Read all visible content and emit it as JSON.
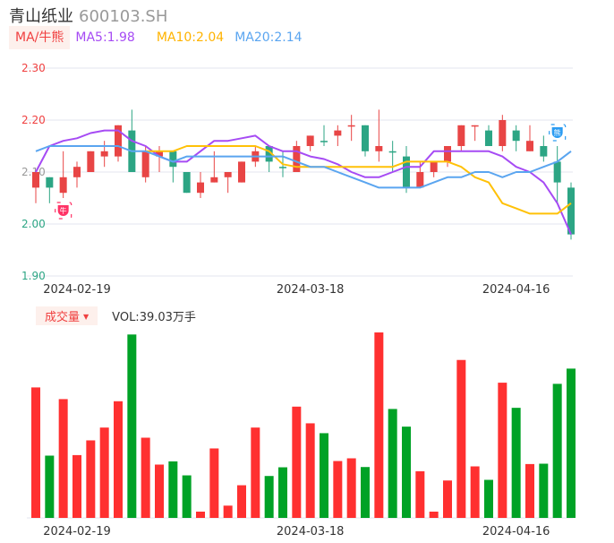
{
  "header": {
    "name": "青山纸业",
    "code": "600103.SH"
  },
  "legend": {
    "ma_button": "MA/牛熊",
    "ma5": "MA5:1.98",
    "ma10": "MA10:2.04",
    "ma20": "MA20:2.14"
  },
  "volume_header": {
    "button": "成交量",
    "value": "VOL:39.03万手"
  },
  "markers": {
    "bull": "牛",
    "bear": "熊"
  },
  "colors": {
    "up": "#e84545",
    "down": "#2ca584",
    "vol_up": "#ff3030",
    "vol_down": "#00a226",
    "ma5": "#a64bf4",
    "ma10": "#ffc107",
    "ma20": "#5aa5f0",
    "grid": "#e3e6ef"
  },
  "chart_data": {
    "type": "candlestick",
    "y_ticks": [
      "2.30",
      "2.20",
      "2.10",
      "2.00",
      "1.90"
    ],
    "ylim": [
      1.9,
      2.3
    ],
    "x_ticks": [
      {
        "index": 3,
        "label": "2024-02-19"
      },
      {
        "index": 20,
        "label": "2024-03-18"
      },
      {
        "index": 35,
        "label": "2024-04-16"
      }
    ],
    "ohlc": [
      [
        2.07,
        2.1,
        2.04,
        2.1
      ],
      [
        2.09,
        2.09,
        2.04,
        2.07
      ],
      [
        2.06,
        2.14,
        2.05,
        2.09
      ],
      [
        2.09,
        2.12,
        2.07,
        2.11
      ],
      [
        2.1,
        2.14,
        2.1,
        2.14
      ],
      [
        2.13,
        2.16,
        2.11,
        2.14
      ],
      [
        2.13,
        2.19,
        2.12,
        2.19
      ],
      [
        2.18,
        2.22,
        2.1,
        2.1
      ],
      [
        2.09,
        2.15,
        2.08,
        2.14
      ],
      [
        2.13,
        2.15,
        2.1,
        2.14
      ],
      [
        2.14,
        2.14,
        2.08,
        2.11
      ],
      [
        2.1,
        2.1,
        2.06,
        2.06
      ],
      [
        2.06,
        2.1,
        2.05,
        2.08
      ],
      [
        2.08,
        2.14,
        2.08,
        2.09
      ],
      [
        2.09,
        2.1,
        2.06,
        2.1
      ],
      [
        2.08,
        2.12,
        2.08,
        2.12
      ],
      [
        2.12,
        2.15,
        2.11,
        2.14
      ],
      [
        2.15,
        2.15,
        2.1,
        2.12
      ],
      [
        2.11,
        2.14,
        2.09,
        2.11
      ],
      [
        2.1,
        2.16,
        2.1,
        2.15
      ],
      [
        2.15,
        2.17,
        2.14,
        2.17
      ],
      [
        2.16,
        2.19,
        2.15,
        2.16
      ],
      [
        2.17,
        2.19,
        2.15,
        2.18
      ],
      [
        2.19,
        2.21,
        2.16,
        2.19
      ],
      [
        2.19,
        2.19,
        2.13,
        2.14
      ],
      [
        2.14,
        2.22,
        2.12,
        2.15
      ],
      [
        2.14,
        2.16,
        2.1,
        2.14
      ],
      [
        2.13,
        2.15,
        2.06,
        2.07
      ],
      [
        2.07,
        2.12,
        2.07,
        2.1
      ],
      [
        2.1,
        2.12,
        2.09,
        2.12
      ],
      [
        2.12,
        2.15,
        2.11,
        2.15
      ],
      [
        2.15,
        2.19,
        2.14,
        2.19
      ],
      [
        2.19,
        2.19,
        2.16,
        2.19
      ],
      [
        2.18,
        2.19,
        2.15,
        2.15
      ],
      [
        2.15,
        2.21,
        2.14,
        2.2
      ],
      [
        2.18,
        2.19,
        2.14,
        2.16
      ],
      [
        2.14,
        2.19,
        2.14,
        2.16
      ],
      [
        2.15,
        2.17,
        2.12,
        2.13
      ],
      [
        2.12,
        2.15,
        2.04,
        2.08
      ],
      [
        2.07,
        2.08,
        1.97,
        1.98
      ]
    ],
    "ma5": [
      2.1,
      2.15,
      2.16,
      2.165,
      2.175,
      2.18,
      2.18,
      2.16,
      2.15,
      2.13,
      2.12,
      2.12,
      2.14,
      2.16,
      2.16,
      2.165,
      2.17,
      2.15,
      2.14,
      2.14,
      2.13,
      2.125,
      2.115,
      2.1,
      2.09,
      2.09,
      2.1,
      2.11,
      2.11,
      2.14,
      2.14,
      2.14,
      2.14,
      2.14,
      2.13,
      2.11,
      2.1,
      2.08,
      2.04,
      1.98
    ],
    "ma10": [
      null,
      null,
      null,
      null,
      null,
      null,
      null,
      null,
      2.14,
      2.14,
      2.14,
      2.15,
      2.15,
      2.15,
      2.15,
      2.15,
      2.15,
      2.14,
      2.115,
      2.11,
      2.11,
      2.11,
      2.11,
      2.11,
      2.11,
      2.11,
      2.11,
      2.12,
      2.12,
      2.12,
      2.12,
      2.11,
      2.09,
      2.08,
      2.04,
      2.03,
      2.02,
      2.02,
      2.02,
      2.04
    ],
    "ma20": [
      2.14,
      2.15,
      2.15,
      2.15,
      2.15,
      2.15,
      2.15,
      2.14,
      2.14,
      2.13,
      2.12,
      2.13,
      2.13,
      2.13,
      2.13,
      2.13,
      2.13,
      2.13,
      2.13,
      2.12,
      2.11,
      2.11,
      2.1,
      2.09,
      2.08,
      2.07,
      2.07,
      2.07,
      2.07,
      2.08,
      2.09,
      2.09,
      2.1,
      2.1,
      2.09,
      2.1,
      2.1,
      2.11,
      2.12,
      2.14
    ],
    "volume_unit": "万手",
    "volume": [
      34.11,
      16.28,
      31.06,
      16.42,
      20.27,
      23.62,
      30.5,
      47.95,
      20.97,
      13.94,
      14.78,
      11.12,
      1.64,
      18.16,
      3.21,
      8.54,
      23.62,
      10.96,
      13.23,
      29.09,
      24.73,
      22.15,
      14.87,
      15.58,
      13.3,
      48.49,
      28.48,
      23.86,
      12.2,
      1.64,
      9.78,
      41.29,
      13.47,
      9.95,
      35.35,
      28.78,
      14.08,
      14.17,
      35.05,
      39.03
    ],
    "volume_up": [
      1,
      0,
      1,
      1,
      1,
      1,
      1,
      0,
      1,
      1,
      0,
      0,
      1,
      1,
      1,
      1,
      1,
      0,
      0,
      1,
      1,
      0,
      1,
      1,
      0,
      1,
      0,
      0,
      1,
      1,
      1,
      1,
      1,
      0,
      1,
      0,
      1,
      0,
      0,
      0
    ],
    "bull_marker_index": 2,
    "bear_marker_index": 38
  }
}
